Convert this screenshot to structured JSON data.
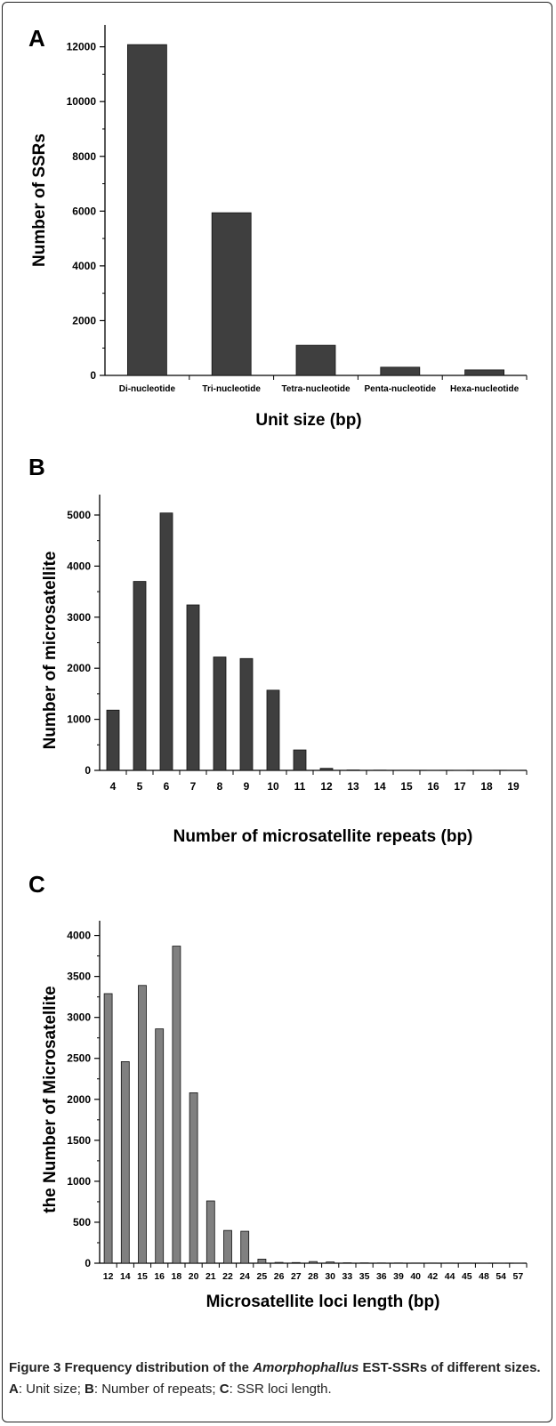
{
  "colors": {
    "bar_dark": "#3f3f3f",
    "bar_gray": "#808080",
    "axis": "#000000"
  },
  "chart_data": [
    {
      "panel": "A",
      "type": "bar",
      "categories": [
        "Di-nucleotide",
        "Tri-nucleotide",
        "Tetra-nucleotide",
        "Penta-nucleotide",
        "Hexa-nucleotide"
      ],
      "values": [
        12080,
        5940,
        1100,
        300,
        200
      ],
      "ylabel": "Number of SSRs",
      "xlabel": "Unit size (bp)",
      "ylim": [
        0,
        12800
      ],
      "yticks": [
        "0",
        "2000",
        "4000",
        "6000",
        "8000",
        "10000",
        "12000"
      ],
      "grid": false
    },
    {
      "panel": "B",
      "type": "bar",
      "categories": [
        "4",
        "5",
        "6",
        "7",
        "8",
        "9",
        "10",
        "11",
        "12",
        "13",
        "14",
        "15",
        "16",
        "17",
        "18",
        "19"
      ],
      "values": [
        1180,
        3700,
        5040,
        3240,
        2220,
        2190,
        1570,
        400,
        40,
        8,
        5,
        3,
        2,
        2,
        1,
        1
      ],
      "ylabel": "Number of microsatellite",
      "xlabel": "Number of microsatellite repeats (bp)",
      "ylim": [
        0,
        5400
      ],
      "yticks": [
        "0",
        "1000",
        "2000",
        "3000",
        "4000",
        "5000"
      ],
      "grid": false
    },
    {
      "panel": "C",
      "type": "bar",
      "categories": [
        "12",
        "14",
        "15",
        "16",
        "18",
        "20",
        "21",
        "22",
        "24",
        "25",
        "26",
        "27",
        "28",
        "30",
        "33",
        "35",
        "36",
        "39",
        "40",
        "42",
        "44",
        "45",
        "48",
        "54",
        "57"
      ],
      "values": [
        3290,
        2460,
        3390,
        2860,
        3870,
        2080,
        760,
        400,
        390,
        50,
        10,
        8,
        20,
        15,
        5,
        4,
        3,
        3,
        2,
        2,
        2,
        2,
        1,
        1,
        1
      ],
      "ylabel": "the Number of Microsatellite",
      "xlabel": "Microsatellite loci length (bp)",
      "ylim": [
        0,
        4180
      ],
      "yticks": [
        "0",
        "500",
        "1000",
        "1500",
        "2000",
        "2500",
        "3000",
        "3500",
        "4000"
      ],
      "grid": false
    }
  ],
  "caption": {
    "fig_label": "Figure 3",
    "title_pre": " Frequency distribution of the ",
    "title_italic": "Amorphophallus",
    "title_post": " EST-SSRs of different sizes.",
    "part_a_key": "A",
    "part_a_text": ": Unit size; ",
    "part_b_key": "B",
    "part_b_text": ": Number of repeats; ",
    "part_c_key": "C",
    "part_c_text": ": SSR loci length."
  }
}
